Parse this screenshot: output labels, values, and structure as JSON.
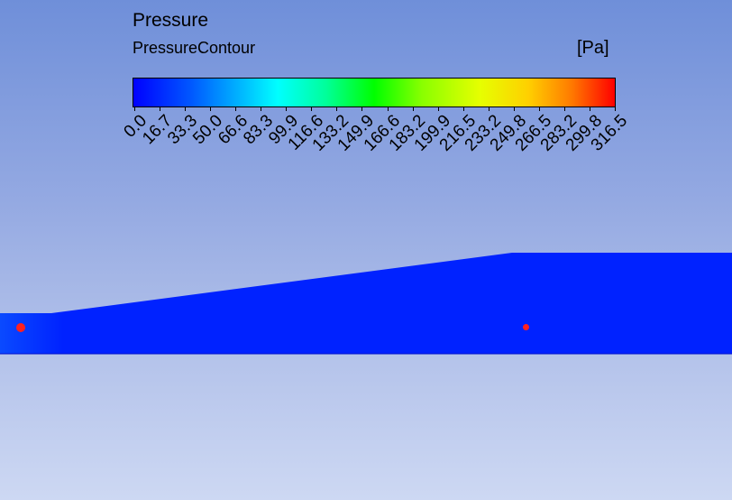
{
  "legend": {
    "title": "Pressure",
    "subtitle": "PressureContour",
    "unit": "[Pa]",
    "range": [
      0.0,
      316.5
    ],
    "tick_labels": [
      "0.0",
      "16.7",
      "33.3",
      "50.0",
      "66.6",
      "83.3",
      "99.9",
      "116.6",
      "133.2",
      "149.9",
      "166.6",
      "183.2",
      "199.9",
      "216.5",
      "233.2",
      "249.8",
      "266.5",
      "283.2",
      "299.8",
      "316.5"
    ],
    "colormap": [
      "#0000ff",
      "#00ffff",
      "#00ff00",
      "#ffff00",
      "#ff0000"
    ]
  },
  "field": {
    "fill_color": "#0022ff",
    "inlet_color": "#0a3cff"
  },
  "probes": [
    {
      "name": "inlet-probe",
      "color": "#ff2020"
    },
    {
      "name": "outlet-probe",
      "color": "#ff2020"
    }
  ]
}
